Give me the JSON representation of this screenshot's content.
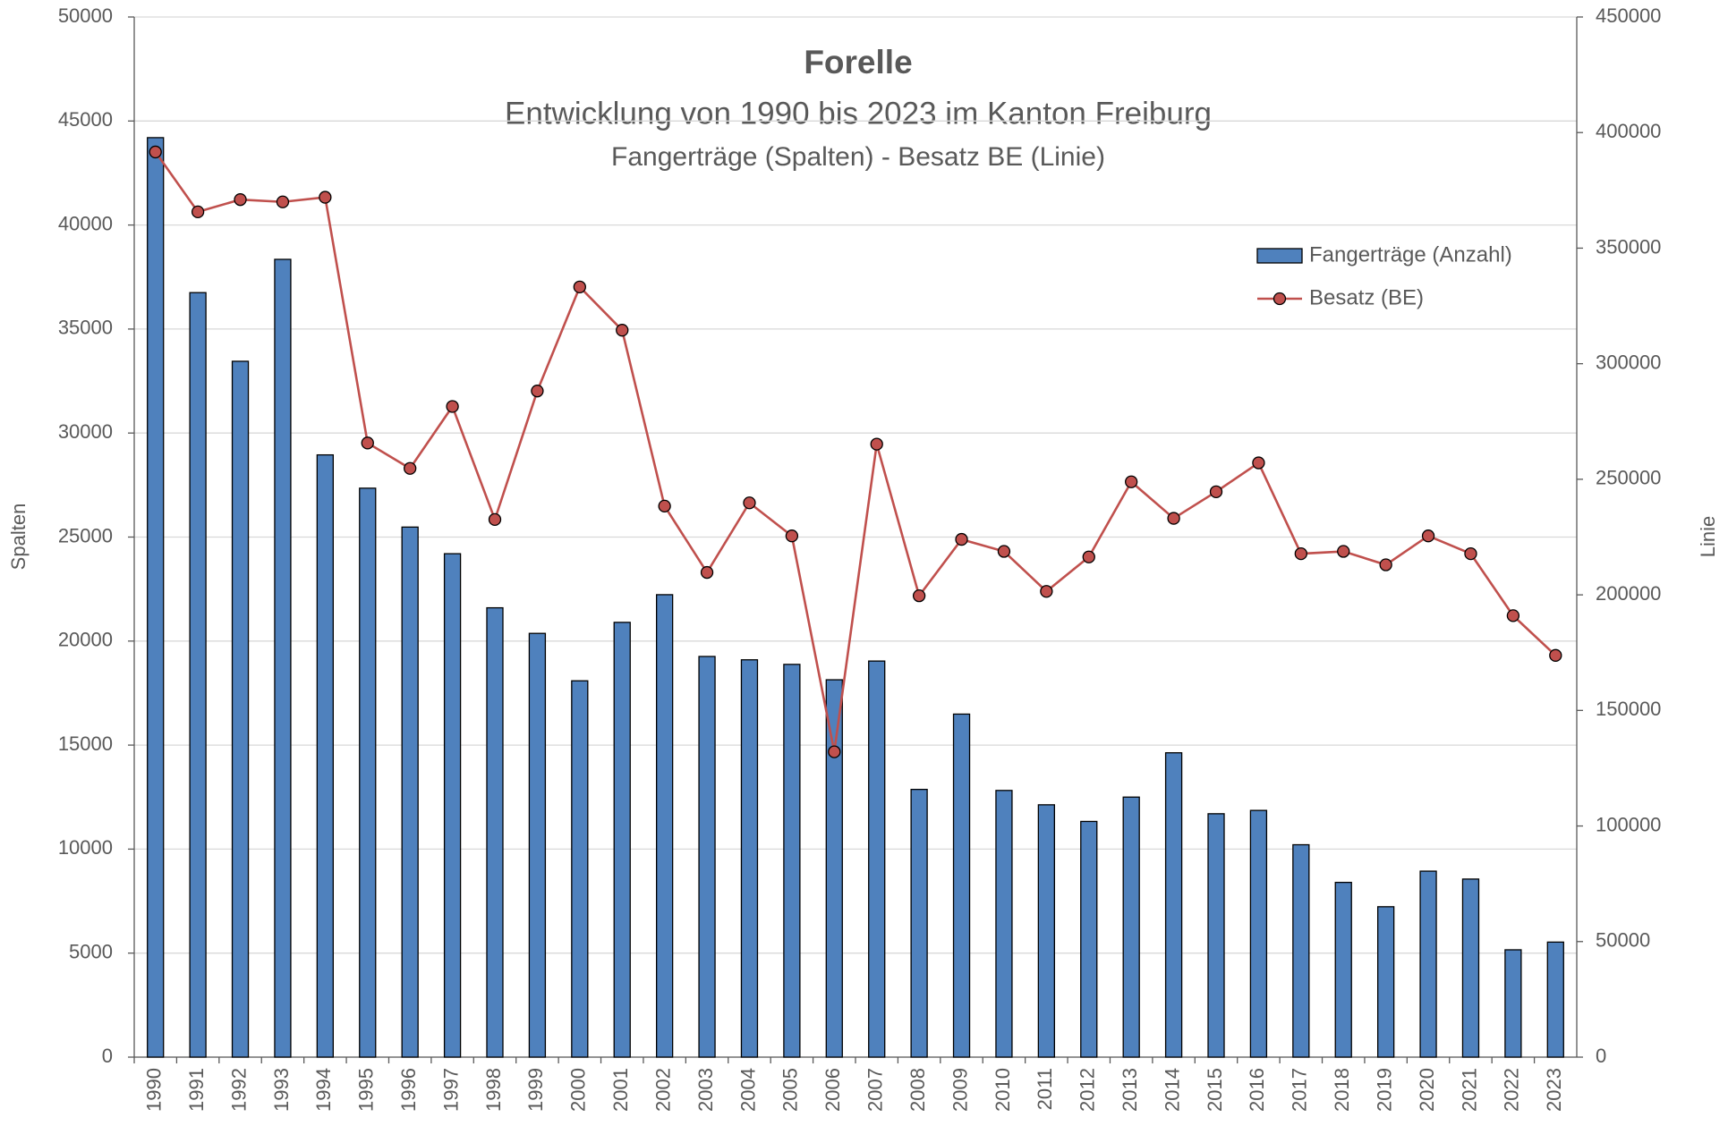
{
  "chart_data": {
    "type": "bar_line",
    "title": "Forelle",
    "subtitle": "Entwicklung von 1990 bis 2023 im Kanton Freiburg",
    "subtitle_2": "Fangerträge (Spalten) - Besatz BE (Linie)",
    "y_label": "Spalten",
    "y2_label": "Linie",
    "categories": [
      "1990",
      "1991",
      "1992",
      "1993",
      "1994",
      "1995",
      "1996",
      "1997",
      "1998",
      "1999",
      "2000",
      "2001",
      "2002",
      "2003",
      "2004",
      "2005",
      "2006",
      "2007",
      "2008",
      "2009",
      "2010",
      "2011",
      "2012",
      "2013",
      "2014",
      "2015",
      "2016",
      "2017",
      "2018",
      "2019",
      "2020",
      "2021",
      "2022",
      "2023"
    ],
    "series": [
      {
        "name": "Fangerträge (Anzahl)",
        "type": "bar",
        "color": "#4f81bd",
        "values": [
          44200,
          36750,
          33450,
          38350,
          28950,
          27350,
          25480,
          24200,
          21600,
          20370,
          18090,
          20900,
          22230,
          19260,
          19100,
          18880,
          18140,
          19040,
          12870,
          16490,
          12820,
          12130,
          11330,
          12500,
          14630,
          11700,
          11860,
          10210,
          8400,
          7230,
          8940,
          8560,
          5160,
          5530
        ]
      },
      {
        "name": "Besatz (BE)",
        "type": "line",
        "axis": "y2",
        "color": "#c0504d",
        "values": [
          391600,
          365700,
          371000,
          370000,
          372000,
          265700,
          254700,
          281500,
          232600,
          288200,
          333200,
          314500,
          238400,
          209700,
          239800,
          225500,
          132100,
          265200,
          199600,
          224000,
          218800,
          201500,
          216400,
          248900,
          233100,
          244600,
          257100,
          217800,
          218800,
          213000,
          225500,
          217800,
          191000,
          173800
        ]
      }
    ],
    "ylim": [
      0,
      50000
    ],
    "yticks": [
      0,
      5000,
      10000,
      15000,
      20000,
      25000,
      30000,
      35000,
      40000,
      45000,
      50000
    ],
    "y2lim": [
      0,
      450000
    ],
    "y2ticks": [
      0,
      50000,
      100000,
      150000,
      200000,
      250000,
      300000,
      350000,
      400000,
      450000
    ],
    "grid": true,
    "legend": "upper right"
  }
}
